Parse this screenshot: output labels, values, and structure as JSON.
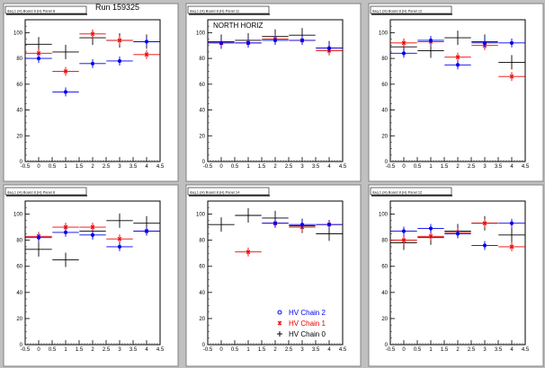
{
  "run_label": "Run 159325",
  "colors": {
    "chain2": "#0000ee",
    "chain1": "#ee0000",
    "chain0": "#000000",
    "pad": "#ffffff",
    "frame": "#c0c0c0"
  },
  "legend": [
    {
      "label": "HV Chain 2",
      "color": "#0000ee",
      "marker": "circle"
    },
    {
      "label": "HV Chain 1",
      "color": "#ee0000",
      "marker": "star"
    },
    {
      "label": "HV Chain 0",
      "color": "#000000",
      "marker": "cross"
    }
  ],
  "chart_data": [
    {
      "type": "scatter",
      "title": "daq 1 (H) Board 8 (H) Panel 8",
      "xlim": [
        -0.5,
        4.5
      ],
      "ylim": [
        0,
        110
      ],
      "x_ticks": [
        "-0.5",
        "0",
        "0.5",
        "1",
        "1.5",
        "2",
        "2.5",
        "3",
        "3.5",
        "4",
        "4.5"
      ],
      "y_ticks": [
        "0",
        "20",
        "40",
        "60",
        "80",
        "100"
      ],
      "series": [
        {
          "name": "HV Chain 2",
          "points": [
            [
              0,
              80
            ],
            [
              1,
              54
            ],
            [
              2,
              76
            ],
            [
              3,
              78
            ],
            [
              4,
              93
            ]
          ]
        },
        {
          "name": "HV Chain 1",
          "points": [
            [
              0,
              84
            ],
            [
              1,
              70
            ],
            [
              2,
              99
            ],
            [
              3,
              94
            ],
            [
              4,
              83
            ]
          ]
        },
        {
          "name": "HV Chain 0",
          "points": [
            [
              0,
              91
            ],
            [
              1,
              85
            ],
            [
              2,
              96
            ],
            [
              3,
              94
            ],
            [
              4,
              93
            ]
          ]
        }
      ]
    },
    {
      "type": "scatter",
      "title": "daq 1 (H) Board 8 (H) Panel 11",
      "annotation": "NORTH HORIZ",
      "xlim": [
        -0.5,
        4.5
      ],
      "ylim": [
        0,
        110
      ],
      "x_ticks": [
        "-0.5",
        "0",
        "0.5",
        "1",
        "1.5",
        "2",
        "2.5",
        "3",
        "3.5",
        "4",
        "4.5"
      ],
      "y_ticks": [
        "0",
        "20",
        "40",
        "60",
        "80",
        "100"
      ],
      "series": [
        {
          "name": "HV Chain 2",
          "points": [
            [
              0,
              92
            ],
            [
              1,
              92
            ],
            [
              2,
              94
            ],
            [
              3,
              94
            ],
            [
              4,
              88
            ]
          ]
        },
        {
          "name": "HV Chain 1",
          "points": [
            [
              0,
              92
            ],
            [
              1,
              92
            ],
            [
              2,
              95
            ],
            [
              3,
              94
            ],
            [
              4,
              86
            ]
          ]
        },
        {
          "name": "HV Chain 0",
          "points": [
            [
              0,
              93
            ],
            [
              1,
              94
            ],
            [
              2,
              97
            ],
            [
              3,
              98
            ],
            [
              4,
              88
            ]
          ]
        }
      ]
    },
    {
      "type": "scatter",
      "title": "daq 1 (H) Board 8 (H) Panel 12",
      "xlim": [
        -0.5,
        4.5
      ],
      "ylim": [
        0,
        110
      ],
      "x_ticks": [
        "-0.5",
        "0",
        "0.5",
        "1",
        "1.5",
        "2",
        "2.5",
        "3",
        "3.5",
        "4",
        "4.5"
      ],
      "y_ticks": [
        "0",
        "20",
        "40",
        "60",
        "80",
        "100"
      ],
      "series": [
        {
          "name": "HV Chain 2",
          "points": [
            [
              0,
              84
            ],
            [
              1,
              94
            ],
            [
              2,
              75
            ],
            [
              3,
              92
            ],
            [
              4,
              92
            ]
          ]
        },
        {
          "name": "HV Chain 1",
          "points": [
            [
              0,
              92
            ],
            [
              1,
              93
            ],
            [
              2,
              81
            ],
            [
              3,
              90
            ],
            [
              4,
              66
            ]
          ]
        },
        {
          "name": "HV Chain 0",
          "points": [
            [
              0,
              89
            ],
            [
              1,
              86
            ],
            [
              2,
              96
            ],
            [
              3,
              93
            ],
            [
              4,
              77
            ]
          ]
        }
      ]
    },
    {
      "type": "scatter",
      "title": "daq 1 (H) Board 8 (H) Panel 8",
      "xlim": [
        -0.5,
        4.5
      ],
      "ylim": [
        0,
        110
      ],
      "x_ticks": [
        "-0.5",
        "0",
        "0.5",
        "1",
        "1.5",
        "2",
        "2.5",
        "3",
        "3.5",
        "4",
        "4.5"
      ],
      "y_ticks": [
        "0",
        "20",
        "40",
        "60",
        "80",
        "100"
      ],
      "series": [
        {
          "name": "HV Chain 2",
          "points": [
            [
              0,
              82
            ],
            [
              1,
              86
            ],
            [
              2,
              84
            ],
            [
              3,
              75
            ],
            [
              4,
              87
            ]
          ]
        },
        {
          "name": "HV Chain 1",
          "points": [
            [
              0,
              83
            ],
            [
              1,
              90
            ],
            [
              2,
              90
            ],
            [
              3,
              81
            ],
            [
              4,
              87
            ]
          ]
        },
        {
          "name": "HV Chain 0",
          "points": [
            [
              0,
              73
            ],
            [
              1,
              65
            ],
            [
              2,
              87
            ],
            [
              3,
              95
            ],
            [
              4,
              93
            ]
          ]
        }
      ]
    },
    {
      "type": "scatter",
      "title": "daq 1 (H) Board 8 (H) Panel 14",
      "xlim": [
        -0.5,
        4.5
      ],
      "ylim": [
        0,
        110
      ],
      "x_ticks": [
        "-0.5",
        "0",
        "0.5",
        "1",
        "1.5",
        "2",
        "2.5",
        "3",
        "3.5",
        "4",
        "4.5"
      ],
      "y_ticks": [
        "0",
        "20",
        "40",
        "60",
        "80",
        "100"
      ],
      "series": [
        {
          "name": "HV Chain 2",
          "points": [
            [
              2,
              93
            ],
            [
              3,
              92
            ],
            [
              4,
              92
            ]
          ]
        },
        {
          "name": "HV Chain 1",
          "points": [
            [
              1,
              71
            ],
            [
              2,
              93
            ],
            [
              3,
              90
            ],
            [
              4,
              92
            ]
          ]
        },
        {
          "name": "HV Chain 0",
          "points": [
            [
              0,
              92
            ],
            [
              1,
              99
            ],
            [
              2,
              97
            ],
            [
              3,
              91
            ],
            [
              4,
              85
            ]
          ]
        }
      ]
    },
    {
      "type": "scatter",
      "title": "daq 1 (H) Board 8 (H) Panel 12",
      "xlim": [
        -0.5,
        4.5
      ],
      "ylim": [
        0,
        110
      ],
      "x_ticks": [
        "-0.5",
        "0",
        "0.5",
        "1",
        "1.5",
        "2",
        "2.5",
        "3",
        "3.5",
        "4",
        "4.5"
      ],
      "y_ticks": [
        "0",
        "20",
        "40",
        "60",
        "80",
        "100"
      ],
      "series": [
        {
          "name": "HV Chain 2",
          "points": [
            [
              0,
              87
            ],
            [
              1,
              89
            ],
            [
              2,
              85
            ],
            [
              3,
              76
            ],
            [
              4,
              93
            ]
          ]
        },
        {
          "name": "HV Chain 1",
          "points": [
            [
              0,
              80
            ],
            [
              1,
              83
            ],
            [
              2,
              86
            ],
            [
              3,
              93
            ],
            [
              4,
              75
            ]
          ]
        },
        {
          "name": "HV Chain 0",
          "points": [
            [
              0,
              78
            ],
            [
              1,
              82
            ],
            [
              2,
              87
            ],
            [
              3,
              93
            ],
            [
              4,
              84
            ]
          ]
        }
      ]
    }
  ]
}
